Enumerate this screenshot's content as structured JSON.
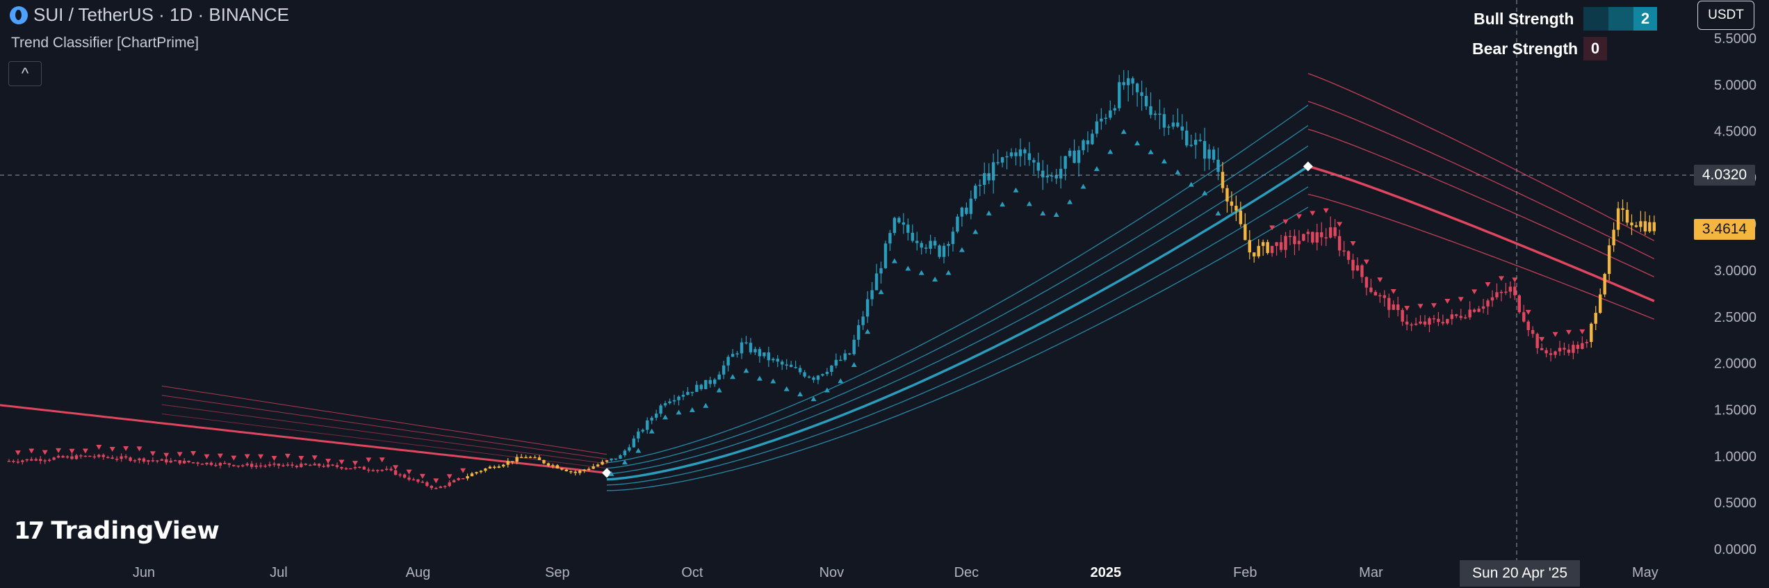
{
  "header": {
    "symbol": "SUI / TetherUS · 1D · BINANCE",
    "indicator": "Trend Classifier [ChartPrime]",
    "collapse": "^"
  },
  "strength_table": {
    "bull_label": "Bull Strength",
    "bull_value": "2",
    "bear_label": "Bear Strength",
    "bear_value": "0"
  },
  "currency": "USDT",
  "crosshair": {
    "price_label": "4.0320",
    "date_label": "Sun 20 Apr '25",
    "price": 4.032
  },
  "last_price": {
    "label": "3.4614",
    "value": 3.4614
  },
  "brand": {
    "name": "TradingView",
    "mark": "17"
  },
  "colors": {
    "background": "#131722",
    "bull": "#2a9dbc",
    "bear": "#e0475f",
    "neutral": "#f5b640",
    "grid_text": "#b2b5be"
  },
  "chart_data": {
    "type": "candlestick",
    "y_axis_labels": [
      "5.5000",
      "5.0000",
      "4.5000",
      "4.0000",
      "3.5000",
      "3.0000",
      "2.5000",
      "2.0000",
      "1.5000",
      "1.0000",
      "0.5000",
      "0.0000"
    ],
    "y_ticks": [
      5.5,
      5.0,
      4.5,
      4.0,
      3.5,
      3.0,
      2.5,
      2.0,
      1.5,
      1.0,
      0.5,
      0.0
    ],
    "ylim": [
      0,
      5.6
    ],
    "x_axis_labels": [
      "Jun",
      "Jul",
      "Aug",
      "Sep",
      "Oct",
      "Nov",
      "Dec",
      "2025",
      "Feb",
      "Mar",
      "Apr",
      "May"
    ],
    "x_ticks": [
      "2024-06-01",
      "2024-07-01",
      "2024-08-01",
      "2024-09-01",
      "2024-10-01",
      "2024-11-01",
      "2024-12-01",
      "2025-01-01",
      "2025-02-01",
      "2025-03-01",
      "2025-04-01",
      "2025-05-01"
    ],
    "series": [
      {
        "name": "SUI / TetherUS",
        "keypoints": [
          [
            "2024-05-02",
            0.95
          ],
          [
            "2024-05-20",
            1.0
          ],
          [
            "2024-06-05",
            0.95
          ],
          [
            "2024-06-25",
            0.9
          ],
          [
            "2024-07-10",
            0.9
          ],
          [
            "2024-07-25",
            0.85
          ],
          [
            "2024-08-05",
            0.65
          ],
          [
            "2024-08-15",
            0.85
          ],
          [
            "2024-08-25",
            1.0
          ],
          [
            "2024-09-05",
            0.82
          ],
          [
            "2024-09-15",
            1.0
          ],
          [
            "2024-09-25",
            1.6
          ],
          [
            "2024-10-05",
            1.8
          ],
          [
            "2024-10-12",
            2.2
          ],
          [
            "2024-10-20",
            2.0
          ],
          [
            "2024-10-28",
            1.85
          ],
          [
            "2024-11-05",
            2.1
          ],
          [
            "2024-11-15",
            3.5
          ],
          [
            "2024-11-25",
            3.2
          ],
          [
            "2024-12-05",
            4.0
          ],
          [
            "2024-12-12",
            4.3
          ],
          [
            "2024-12-20",
            4.0
          ],
          [
            "2024-12-28",
            4.4
          ],
          [
            "2025-01-05",
            5.0
          ],
          [
            "2025-01-15",
            4.6
          ],
          [
            "2025-01-25",
            4.2
          ],
          [
            "2025-02-02",
            3.2
          ],
          [
            "2025-02-10",
            3.3
          ],
          [
            "2025-02-20",
            3.4
          ],
          [
            "2025-03-01",
            2.8
          ],
          [
            "2025-03-10",
            2.4
          ],
          [
            "2025-03-20",
            2.5
          ],
          [
            "2025-04-01",
            2.8
          ],
          [
            "2025-04-08",
            2.1
          ],
          [
            "2025-04-18",
            2.2
          ],
          [
            "2025-04-25",
            3.6
          ],
          [
            "2025-05-03",
            3.46
          ]
        ]
      }
    ],
    "bands": {
      "bear_early": {
        "from": "2024-06-01",
        "to": "2024-09-10"
      },
      "bull": {
        "from": "2024-09-12",
        "to": "2025-02-15"
      },
      "bear_late": {
        "from": "2025-02-15",
        "to": "2025-05-03"
      }
    },
    "grid": false
  }
}
